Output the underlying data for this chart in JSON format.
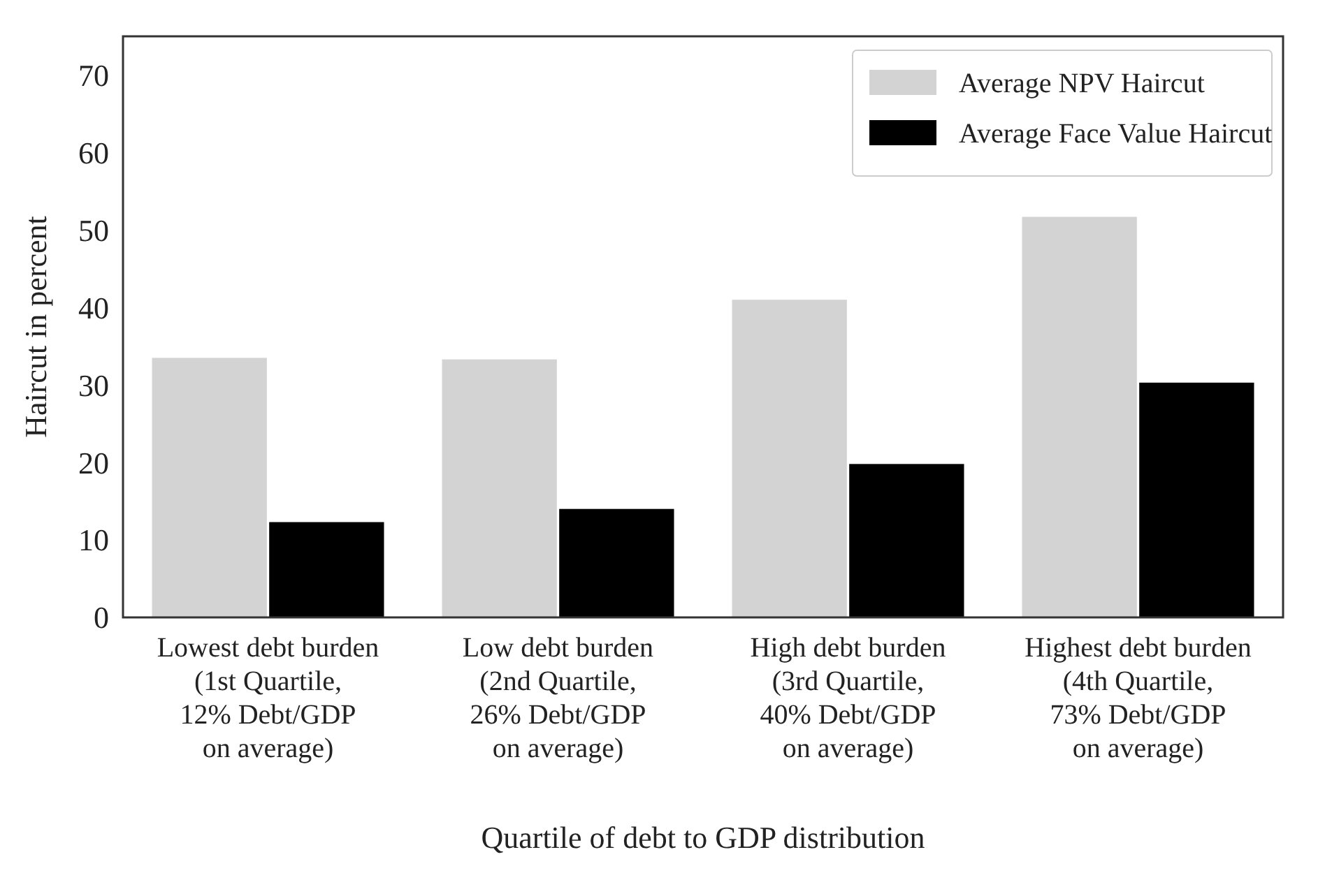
{
  "chart_data": {
    "type": "bar",
    "xlabel": "Quartile of debt to GDP distribution",
    "ylabel": "Haircut in percent",
    "categories": [
      "Lowest debt burden\n(1st Quartile,\n12% Debt/GDP\non average)",
      "Low debt burden\n(2nd Quartile,\n26% Debt/GDP\non average)",
      "High debt burden\n(3rd Quartile,\n40% Debt/GDP\non average)",
      "Highest debt burden\n(4th Quartile,\n73% Debt/GDP\non average)"
    ],
    "series": [
      {
        "name": "Average NPV Haircut",
        "color": "#d3d3d3",
        "values": [
          33.5,
          33.3,
          41.0,
          51.7
        ]
      },
      {
        "name": "Average Face Value Haircut",
        "color": "#000000",
        "values": [
          12.3,
          14.0,
          19.8,
          30.3
        ]
      }
    ],
    "ylim": [
      0,
      75
    ],
    "yticks": [
      0,
      10,
      20,
      30,
      40,
      50,
      60,
      70
    ],
    "grid": false,
    "legend": "top right"
  }
}
